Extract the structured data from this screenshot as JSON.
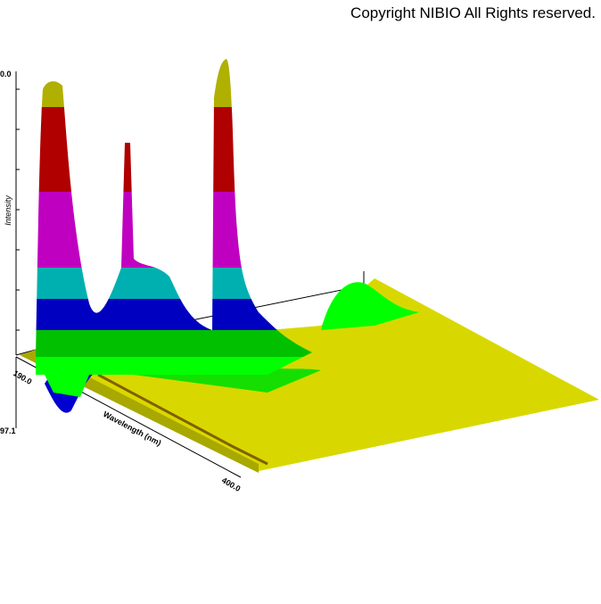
{
  "copyright": "Copyright NIBIO All Rights reserved.",
  "axes": {
    "z_label": "Intensity",
    "x_label": "Wavelength (nm)",
    "z_top_tick": "0.0",
    "z_bottom_tick": "97.1",
    "x_start_tick": "190.0",
    "x_end_tick": "400.0"
  }
}
